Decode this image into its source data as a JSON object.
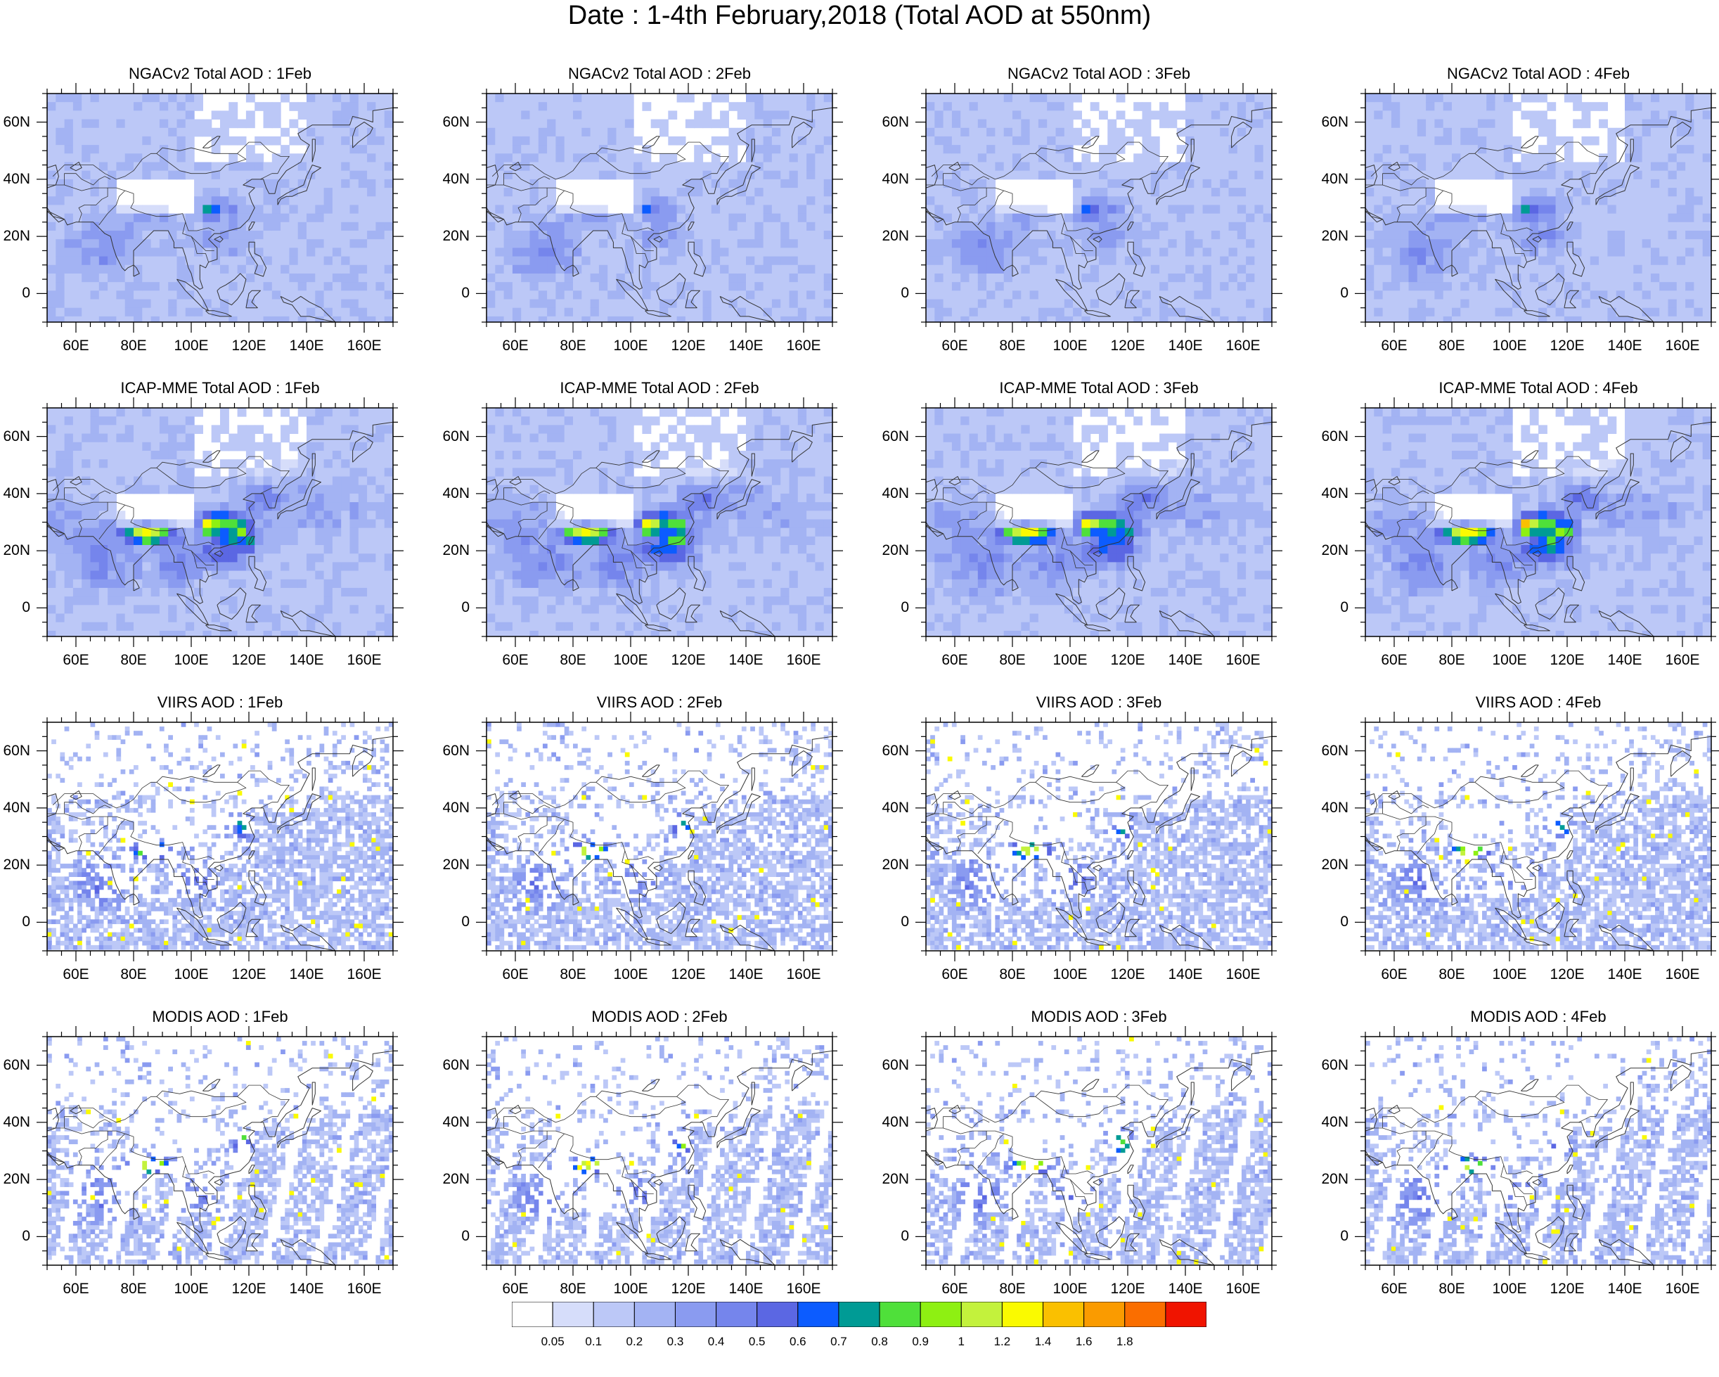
{
  "figure": {
    "title": "Date : 1-4th February,2018 (Total AOD at 550nm)",
    "panels": [
      [
        {
          "title": "NGACv2 Total AOD : 1Feb",
          "style": "model",
          "intensity": 0.35
        },
        {
          "title": "NGACv2 Total AOD : 2Feb",
          "style": "model",
          "intensity": 0.3
        },
        {
          "title": "NGACv2 Total AOD : 3Feb",
          "style": "model",
          "intensity": 0.38
        },
        {
          "title": "NGACv2 Total AOD : 4Feb",
          "style": "model",
          "intensity": 0.42
        }
      ],
      [
        {
          "title": "ICAP-MME Total AOD : 1Feb",
          "style": "model-strong",
          "intensity": 0.8
        },
        {
          "title": "ICAP-MME Total AOD : 2Feb",
          "style": "model-strong",
          "intensity": 0.85
        },
        {
          "title": "ICAP-MME Total AOD : 3Feb",
          "style": "model-strong",
          "intensity": 0.82
        },
        {
          "title": "ICAP-MME Total AOD : 4Feb",
          "style": "model-strong",
          "intensity": 0.88
        }
      ],
      [
        {
          "title": "VIIRS AOD : 1Feb",
          "style": "satellite",
          "intensity": 0.7
        },
        {
          "title": "VIIRS AOD : 2Feb",
          "style": "satellite",
          "intensity": 0.72
        },
        {
          "title": "VIIRS AOD : 3Feb",
          "style": "satellite",
          "intensity": 0.7
        },
        {
          "title": "VIIRS AOD : 4Feb",
          "style": "satellite",
          "intensity": 0.66
        }
      ],
      [
        {
          "title": "MODIS AOD : 1Feb",
          "style": "satellite-swath",
          "intensity": 0.75
        },
        {
          "title": "MODIS AOD : 2Feb",
          "style": "satellite-swath",
          "intensity": 0.76
        },
        {
          "title": "MODIS AOD : 3Feb",
          "style": "satellite-swath",
          "intensity": 0.8
        },
        {
          "title": "MODIS AOD : 4Feb",
          "style": "satellite-swath",
          "intensity": 0.7
        }
      ]
    ],
    "lon_range": [
      50,
      170
    ],
    "lat_range": [
      -10,
      70
    ],
    "lon_ticks": [
      60,
      80,
      100,
      120,
      140,
      160
    ],
    "lon_tick_labels": [
      "60E",
      "80E",
      "100E",
      "120E",
      "140E",
      "160E"
    ],
    "lat_ticks": [
      0,
      20,
      40,
      60
    ],
    "lat_tick_labels": [
      "0",
      "20N",
      "40N",
      "60N"
    ]
  },
  "colorbar": {
    "colors": [
      "#ffffff",
      "#d6ddfa",
      "#bcc8f7",
      "#a3b3f3",
      "#8a9bf0",
      "#7585ec",
      "#5b67e3",
      "#0c5cff",
      "#009b95",
      "#4fe03a",
      "#8ef012",
      "#c3f23c",
      "#fafa00",
      "#fac000",
      "#fa9b00",
      "#fa6e00",
      "#f01400"
    ],
    "labels": [
      "0.05",
      "0.1",
      "0.2",
      "0.3",
      "0.4",
      "0.5",
      "0.6",
      "0.7",
      "0.8",
      "0.9",
      "1",
      "1.2",
      "1.4",
      "1.6",
      "1.8"
    ]
  }
}
